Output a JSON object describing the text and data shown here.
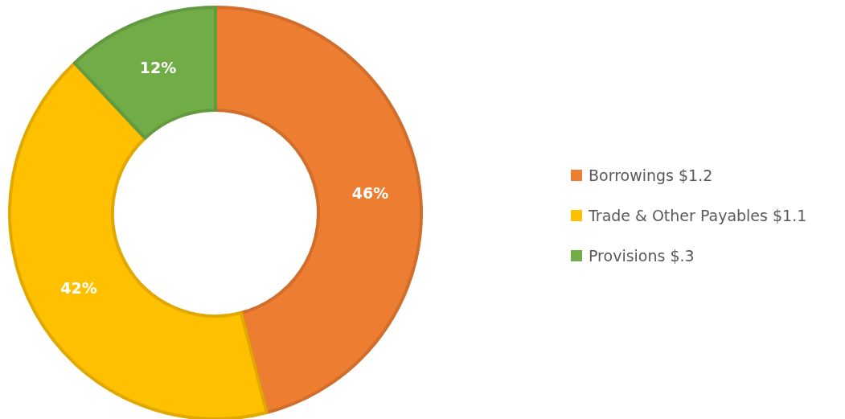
{
  "chart_data": {
    "type": "donut",
    "categories": [
      "Borrowings $1.2",
      "Trade & Other Payables $1.1",
      "Provisions $.3"
    ],
    "values": [
      46,
      42,
      12
    ],
    "colors": [
      "#ed7d31",
      "#ffc000",
      "#70ad47"
    ],
    "value_labels": [
      "46%",
      "42%",
      "12%"
    ],
    "legend": "right"
  }
}
